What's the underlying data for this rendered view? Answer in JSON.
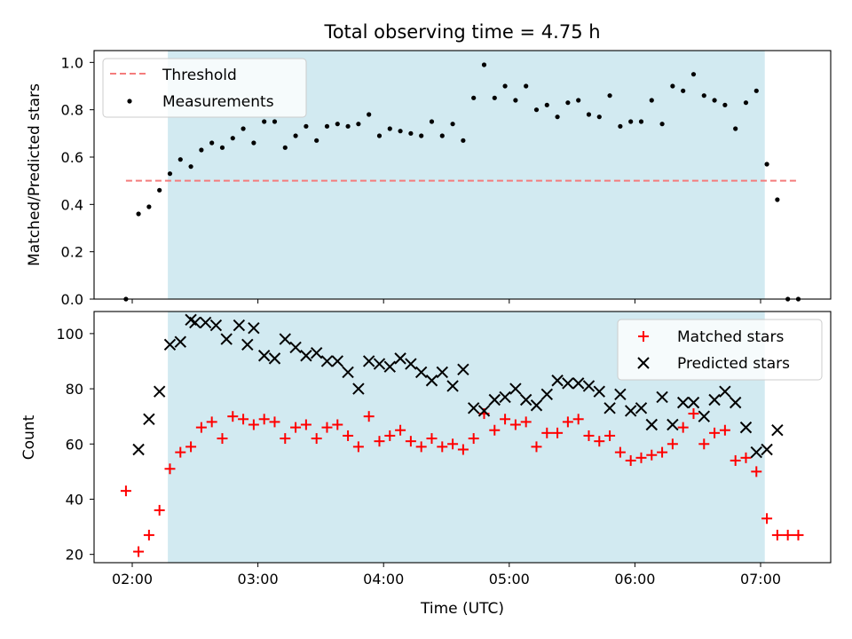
{
  "figure": {
    "title": "Total observing time = 4.75 h",
    "xlabel": "Time (UTC)",
    "x_tick_labels": [
      "02:00",
      "03:00",
      "04:00",
      "05:00",
      "06:00",
      "07:00"
    ],
    "shaded_band": {
      "from": "02:17",
      "to": "07:02",
      "color": "#add8e6"
    }
  },
  "chart_data": [
    {
      "type": "scatter",
      "ylabel": "Matched/Predicted stars",
      "ylim": [
        0,
        1.05
      ],
      "y_ticks": [
        0.0,
        0.2,
        0.4,
        0.6,
        0.8,
        1.0
      ],
      "y_tick_labels": [
        "0.0",
        "0.2",
        "0.4",
        "0.6",
        "0.8",
        "1.0"
      ],
      "legend_position": "top-left",
      "threshold": {
        "name": "Threshold",
        "value": 0.5,
        "from": "01:57",
        "to": "07:18",
        "color": "#f47c7c"
      },
      "series": [
        {
          "name": "Measurements",
          "color": "#000000",
          "marker": "dot",
          "points": [
            [
              "01:57",
              0.0
            ],
            [
              "02:03",
              0.36
            ],
            [
              "02:08",
              0.39
            ],
            [
              "02:13",
              0.46
            ],
            [
              "02:18",
              0.53
            ],
            [
              "02:23",
              0.59
            ],
            [
              "02:28",
              0.56
            ],
            [
              "02:33",
              0.63
            ],
            [
              "02:38",
              0.66
            ],
            [
              "02:43",
              0.64
            ],
            [
              "02:48",
              0.68
            ],
            [
              "02:53",
              0.72
            ],
            [
              "02:58",
              0.66
            ],
            [
              "03:03",
              0.75
            ],
            [
              "03:08",
              0.75
            ],
            [
              "03:13",
              0.64
            ],
            [
              "03:18",
              0.69
            ],
            [
              "03:23",
              0.73
            ],
            [
              "03:28",
              0.67
            ],
            [
              "03:33",
              0.73
            ],
            [
              "03:38",
              0.74
            ],
            [
              "03:43",
              0.73
            ],
            [
              "03:48",
              0.74
            ],
            [
              "03:53",
              0.78
            ],
            [
              "03:58",
              0.69
            ],
            [
              "04:03",
              0.72
            ],
            [
              "04:08",
              0.71
            ],
            [
              "04:13",
              0.7
            ],
            [
              "04:18",
              0.69
            ],
            [
              "04:23",
              0.75
            ],
            [
              "04:28",
              0.69
            ],
            [
              "04:33",
              0.74
            ],
            [
              "04:38",
              0.67
            ],
            [
              "04:43",
              0.85
            ],
            [
              "04:48",
              0.99
            ],
            [
              "04:53",
              0.85
            ],
            [
              "04:58",
              0.9
            ],
            [
              "05:03",
              0.84
            ],
            [
              "05:08",
              0.9
            ],
            [
              "05:13",
              0.8
            ],
            [
              "05:18",
              0.82
            ],
            [
              "05:23",
              0.77
            ],
            [
              "05:28",
              0.83
            ],
            [
              "05:33",
              0.84
            ],
            [
              "05:38",
              0.78
            ],
            [
              "05:43",
              0.77
            ],
            [
              "05:48",
              0.86
            ],
            [
              "05:53",
              0.73
            ],
            [
              "05:58",
              0.75
            ],
            [
              "06:03",
              0.75
            ],
            [
              "06:08",
              0.84
            ],
            [
              "06:13",
              0.74
            ],
            [
              "06:18",
              0.9
            ],
            [
              "06:23",
              0.88
            ],
            [
              "06:28",
              0.95
            ],
            [
              "06:33",
              0.86
            ],
            [
              "06:38",
              0.84
            ],
            [
              "06:43",
              0.82
            ],
            [
              "06:48",
              0.72
            ],
            [
              "06:53",
              0.83
            ],
            [
              "06:58",
              0.88
            ],
            [
              "07:03",
              0.57
            ],
            [
              "07:08",
              0.42
            ],
            [
              "07:13",
              0.0
            ],
            [
              "07:18",
              0.0
            ]
          ]
        }
      ]
    },
    {
      "type": "scatter",
      "ylabel": "Count",
      "ylim": [
        17,
        108
      ],
      "y_ticks": [
        20,
        40,
        60,
        80,
        100
      ],
      "y_tick_labels": [
        "20",
        "40",
        "60",
        "80",
        "100"
      ],
      "legend_position": "top-right",
      "series": [
        {
          "name": "Matched stars",
          "color": "#ff0000",
          "marker": "plus",
          "points": [
            [
              "01:57",
              43
            ],
            [
              "02:03",
              21
            ],
            [
              "02:08",
              27
            ],
            [
              "02:13",
              36
            ],
            [
              "02:18",
              51
            ],
            [
              "02:23",
              57
            ],
            [
              "02:28",
              59
            ],
            [
              "02:33",
              66
            ],
            [
              "02:38",
              68
            ],
            [
              "02:43",
              62
            ],
            [
              "02:48",
              70
            ],
            [
              "02:53",
              69
            ],
            [
              "02:58",
              67
            ],
            [
              "03:03",
              69
            ],
            [
              "03:08",
              68
            ],
            [
              "03:13",
              62
            ],
            [
              "03:18",
              66
            ],
            [
              "03:23",
              67
            ],
            [
              "03:28",
              62
            ],
            [
              "03:33",
              66
            ],
            [
              "03:38",
              67
            ],
            [
              "03:43",
              63
            ],
            [
              "03:48",
              59
            ],
            [
              "03:53",
              70
            ],
            [
              "03:58",
              61
            ],
            [
              "04:03",
              63
            ],
            [
              "04:08",
              65
            ],
            [
              "04:13",
              61
            ],
            [
              "04:18",
              59
            ],
            [
              "04:23",
              62
            ],
            [
              "04:28",
              59
            ],
            [
              "04:33",
              60
            ],
            [
              "04:38",
              58
            ],
            [
              "04:43",
              62
            ],
            [
              "04:48",
              71
            ],
            [
              "04:53",
              65
            ],
            [
              "04:58",
              69
            ],
            [
              "05:03",
              67
            ],
            [
              "05:08",
              68
            ],
            [
              "05:13",
              59
            ],
            [
              "05:18",
              64
            ],
            [
              "05:23",
              64
            ],
            [
              "05:28",
              68
            ],
            [
              "05:33",
              69
            ],
            [
              "05:38",
              63
            ],
            [
              "05:43",
              61
            ],
            [
              "05:48",
              63
            ],
            [
              "05:53",
              57
            ],
            [
              "05:58",
              54
            ],
            [
              "06:03",
              55
            ],
            [
              "06:08",
              56
            ],
            [
              "06:13",
              57
            ],
            [
              "06:18",
              60
            ],
            [
              "06:23",
              66
            ],
            [
              "06:28",
              71
            ],
            [
              "06:33",
              60
            ],
            [
              "06:38",
              64
            ],
            [
              "06:43",
              65
            ],
            [
              "06:48",
              54
            ],
            [
              "06:53",
              55
            ],
            [
              "06:58",
              50
            ],
            [
              "07:03",
              33
            ],
            [
              "07:08",
              27
            ],
            [
              "07:13",
              27
            ],
            [
              "07:18",
              27
            ]
          ]
        },
        {
          "name": "Predicted stars",
          "color": "#000000",
          "marker": "x",
          "points": [
            [
              "02:03",
              58
            ],
            [
              "02:08",
              69
            ],
            [
              "02:13",
              79
            ],
            [
              "02:18",
              96
            ],
            [
              "02:23",
              97
            ],
            [
              "02:28",
              105
            ],
            [
              "02:30",
              104
            ],
            [
              "02:35",
              104
            ],
            [
              "02:40",
              103
            ],
            [
              "02:45",
              98
            ],
            [
              "02:51",
              103
            ],
            [
              "02:55",
              96
            ],
            [
              "02:58",
              102
            ],
            [
              "03:03",
              92
            ],
            [
              "03:08",
              91
            ],
            [
              "03:13",
              98
            ],
            [
              "03:18",
              95
            ],
            [
              "03:23",
              92
            ],
            [
              "03:28",
              93
            ],
            [
              "03:33",
              90
            ],
            [
              "03:38",
              90
            ],
            [
              "03:43",
              86
            ],
            [
              "03:48",
              80
            ],
            [
              "03:53",
              90
            ],
            [
              "03:58",
              89
            ],
            [
              "04:03",
              88
            ],
            [
              "04:08",
              91
            ],
            [
              "04:13",
              89
            ],
            [
              "04:18",
              86
            ],
            [
              "04:23",
              83
            ],
            [
              "04:28",
              86
            ],
            [
              "04:33",
              81
            ],
            [
              "04:38",
              87
            ],
            [
              "04:43",
              73
            ],
            [
              "04:48",
              72
            ],
            [
              "04:53",
              76
            ],
            [
              "04:58",
              77
            ],
            [
              "05:03",
              80
            ],
            [
              "05:08",
              76
            ],
            [
              "05:13",
              74
            ],
            [
              "05:18",
              78
            ],
            [
              "05:23",
              83
            ],
            [
              "05:28",
              82
            ],
            [
              "05:33",
              82
            ],
            [
              "05:38",
              81
            ],
            [
              "05:43",
              79
            ],
            [
              "05:48",
              73
            ],
            [
              "05:53",
              78
            ],
            [
              "05:58",
              72
            ],
            [
              "06:03",
              73
            ],
            [
              "06:08",
              67
            ],
            [
              "06:13",
              77
            ],
            [
              "06:18",
              67
            ],
            [
              "06:23",
              75
            ],
            [
              "06:28",
              75
            ],
            [
              "06:33",
              70
            ],
            [
              "06:38",
              76
            ],
            [
              "06:43",
              79
            ],
            [
              "06:48",
              75
            ],
            [
              "06:53",
              66
            ],
            [
              "06:58",
              57
            ],
            [
              "07:03",
              58
            ],
            [
              "07:08",
              65
            ]
          ]
        }
      ]
    }
  ]
}
